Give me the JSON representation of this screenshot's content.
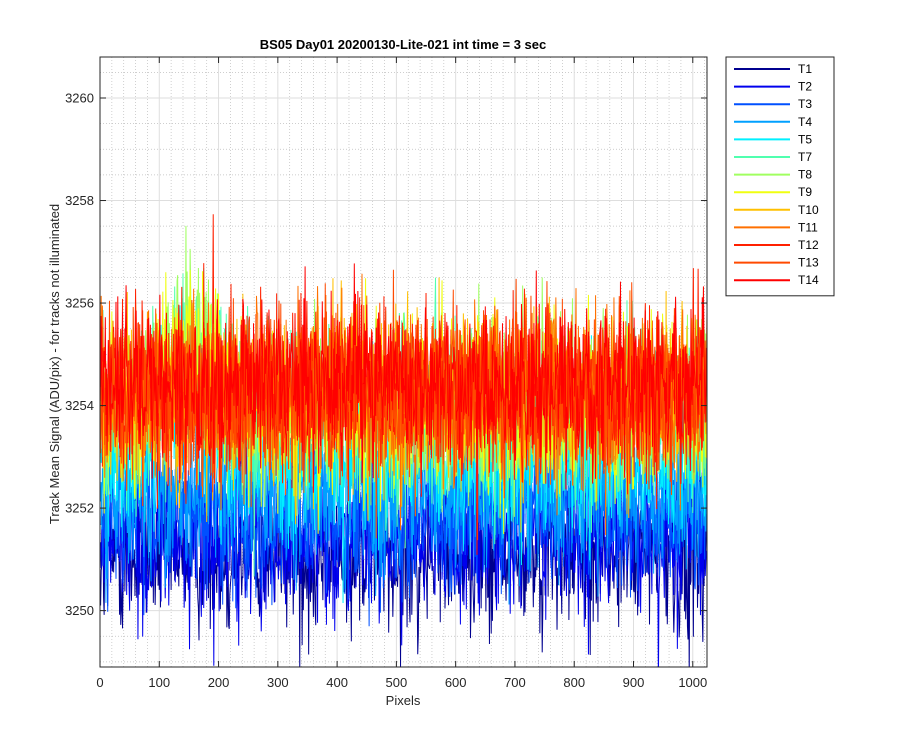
{
  "chart_data": {
    "type": "line",
    "title": "BS05 Day01 20200130-Lite-021 int time = 3 sec",
    "xlabel": "Pixels",
    "ylabel": "Track Mean Signal (ADU/pix) - for tracks not illuminated",
    "xlim": [
      0,
      1024
    ],
    "ylim": [
      3248.9,
      3260.8
    ],
    "x_ticks": [
      "0",
      "100",
      "200",
      "300",
      "400",
      "500",
      "600",
      "700",
      "800",
      "900",
      "1000"
    ],
    "y_ticks": [
      "3250",
      "3252",
      "3254",
      "3256",
      "3258",
      "3260"
    ],
    "grid": "on (major and minor)",
    "legend_position": "outside top-right",
    "x": "pixel index 1 to 1024",
    "series": [
      {
        "name": "T1",
        "color": "#00008f",
        "mean": 3251.1,
        "spread": 0.75
      },
      {
        "name": "T2",
        "color": "#0000ee",
        "mean": 3251.4,
        "spread": 0.75
      },
      {
        "name": "T3",
        "color": "#0050ff",
        "mean": 3251.9,
        "spread": 0.75
      },
      {
        "name": "T4",
        "color": "#00a0ff",
        "mean": 3252.4,
        "spread": 0.8
      },
      {
        "name": "T5",
        "color": "#00f0ff",
        "mean": 3253.1,
        "spread": 0.85
      },
      {
        "name": "T7",
        "color": "#50ffaf",
        "mean": 3253.8,
        "spread": 0.9
      },
      {
        "name": "T8",
        "color": "#a0ff60",
        "mean": 3253.9,
        "spread": 0.85
      },
      {
        "name": "T9",
        "color": "#f0ff10",
        "mean": 3254.0,
        "spread": 0.85
      },
      {
        "name": "T10",
        "color": "#ffc000",
        "mean": 3254.1,
        "spread": 0.85
      },
      {
        "name": "T11",
        "color": "#ff7000",
        "mean": 3254.2,
        "spread": 0.85
      },
      {
        "name": "T12",
        "color": "#ff2000",
        "mean": 3254.3,
        "spread": 0.85
      },
      {
        "name": "T13",
        "color": "#ff4a00",
        "mean": 3254.3,
        "spread": 0.8
      },
      {
        "name": "T14",
        "color": "#ff0000",
        "mean": 3254.4,
        "spread": 0.8
      }
    ]
  }
}
